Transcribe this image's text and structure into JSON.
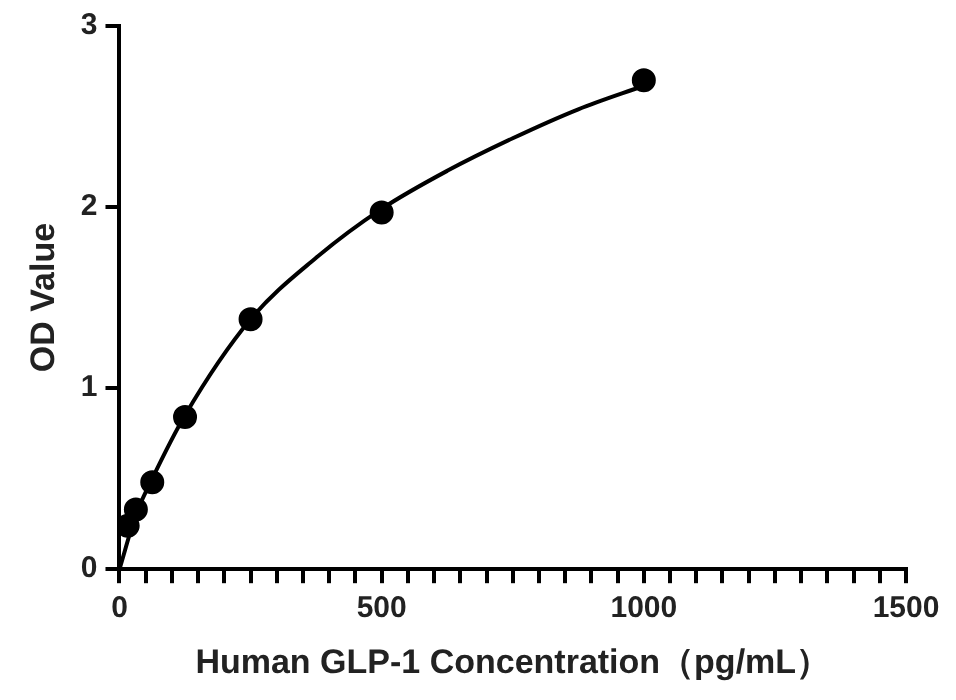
{
  "chart_data": {
    "type": "scatter",
    "xlabel": "Human GLP-1 Concentration（pg/mL）",
    "ylabel": "OD Value",
    "xlim": [
      0,
      1500
    ],
    "ylim": [
      0,
      3
    ],
    "xticks": [
      0,
      {
        "value": 50,
        "label": null
      },
      {
        "value": 100,
        "label": null
      },
      {
        "value": 150,
        "label": null
      },
      {
        "value": 200,
        "label": null
      },
      {
        "value": 250,
        "label": null
      },
      {
        "value": 300,
        "label": null
      },
      {
        "value": 350,
        "label": null
      },
      {
        "value": 400,
        "label": null
      },
      {
        "value": 450,
        "label": null
      },
      500,
      {
        "value": 550,
        "label": null
      },
      {
        "value": 600,
        "label": null
      },
      {
        "value": 650,
        "label": null
      },
      {
        "value": 700,
        "label": null
      },
      {
        "value": 750,
        "label": null
      },
      {
        "value": 800,
        "label": null
      },
      {
        "value": 850,
        "label": null
      },
      {
        "value": 900,
        "label": null
      },
      {
        "value": 950,
        "label": null
      },
      1000,
      {
        "value": 1050,
        "label": null
      },
      {
        "value": 1100,
        "label": null
      },
      {
        "value": 1150,
        "label": null
      },
      {
        "value": 1200,
        "label": null
      },
      {
        "value": 1250,
        "label": null
      },
      {
        "value": 1300,
        "label": null
      },
      {
        "value": 1350,
        "label": null
      },
      {
        "value": 1400,
        "label": null
      },
      {
        "value": 1450,
        "label": null
      },
      1500
    ],
    "yticks": [
      0,
      1,
      2,
      3
    ],
    "grid": false,
    "legend": false,
    "series": [
      {
        "type": "scatter",
        "color": "#000000",
        "marker": "circle",
        "x": [
          15.6,
          31.25,
          62.5,
          125,
          250,
          500,
          1000
        ],
        "values": [
          0.24,
          0.33,
          0.48,
          0.84,
          1.38,
          1.97,
          2.7
        ]
      },
      {
        "type": "line",
        "color": "#000000",
        "marker": "none",
        "x": [
          0,
          31.25,
          62.5,
          125,
          250,
          375,
          500,
          625,
          750,
          875,
          1000
        ],
        "values": [
          0,
          0.3,
          0.5,
          0.85,
          1.38,
          1.72,
          1.99,
          2.2,
          2.38,
          2.54,
          2.67
        ]
      }
    ]
  }
}
